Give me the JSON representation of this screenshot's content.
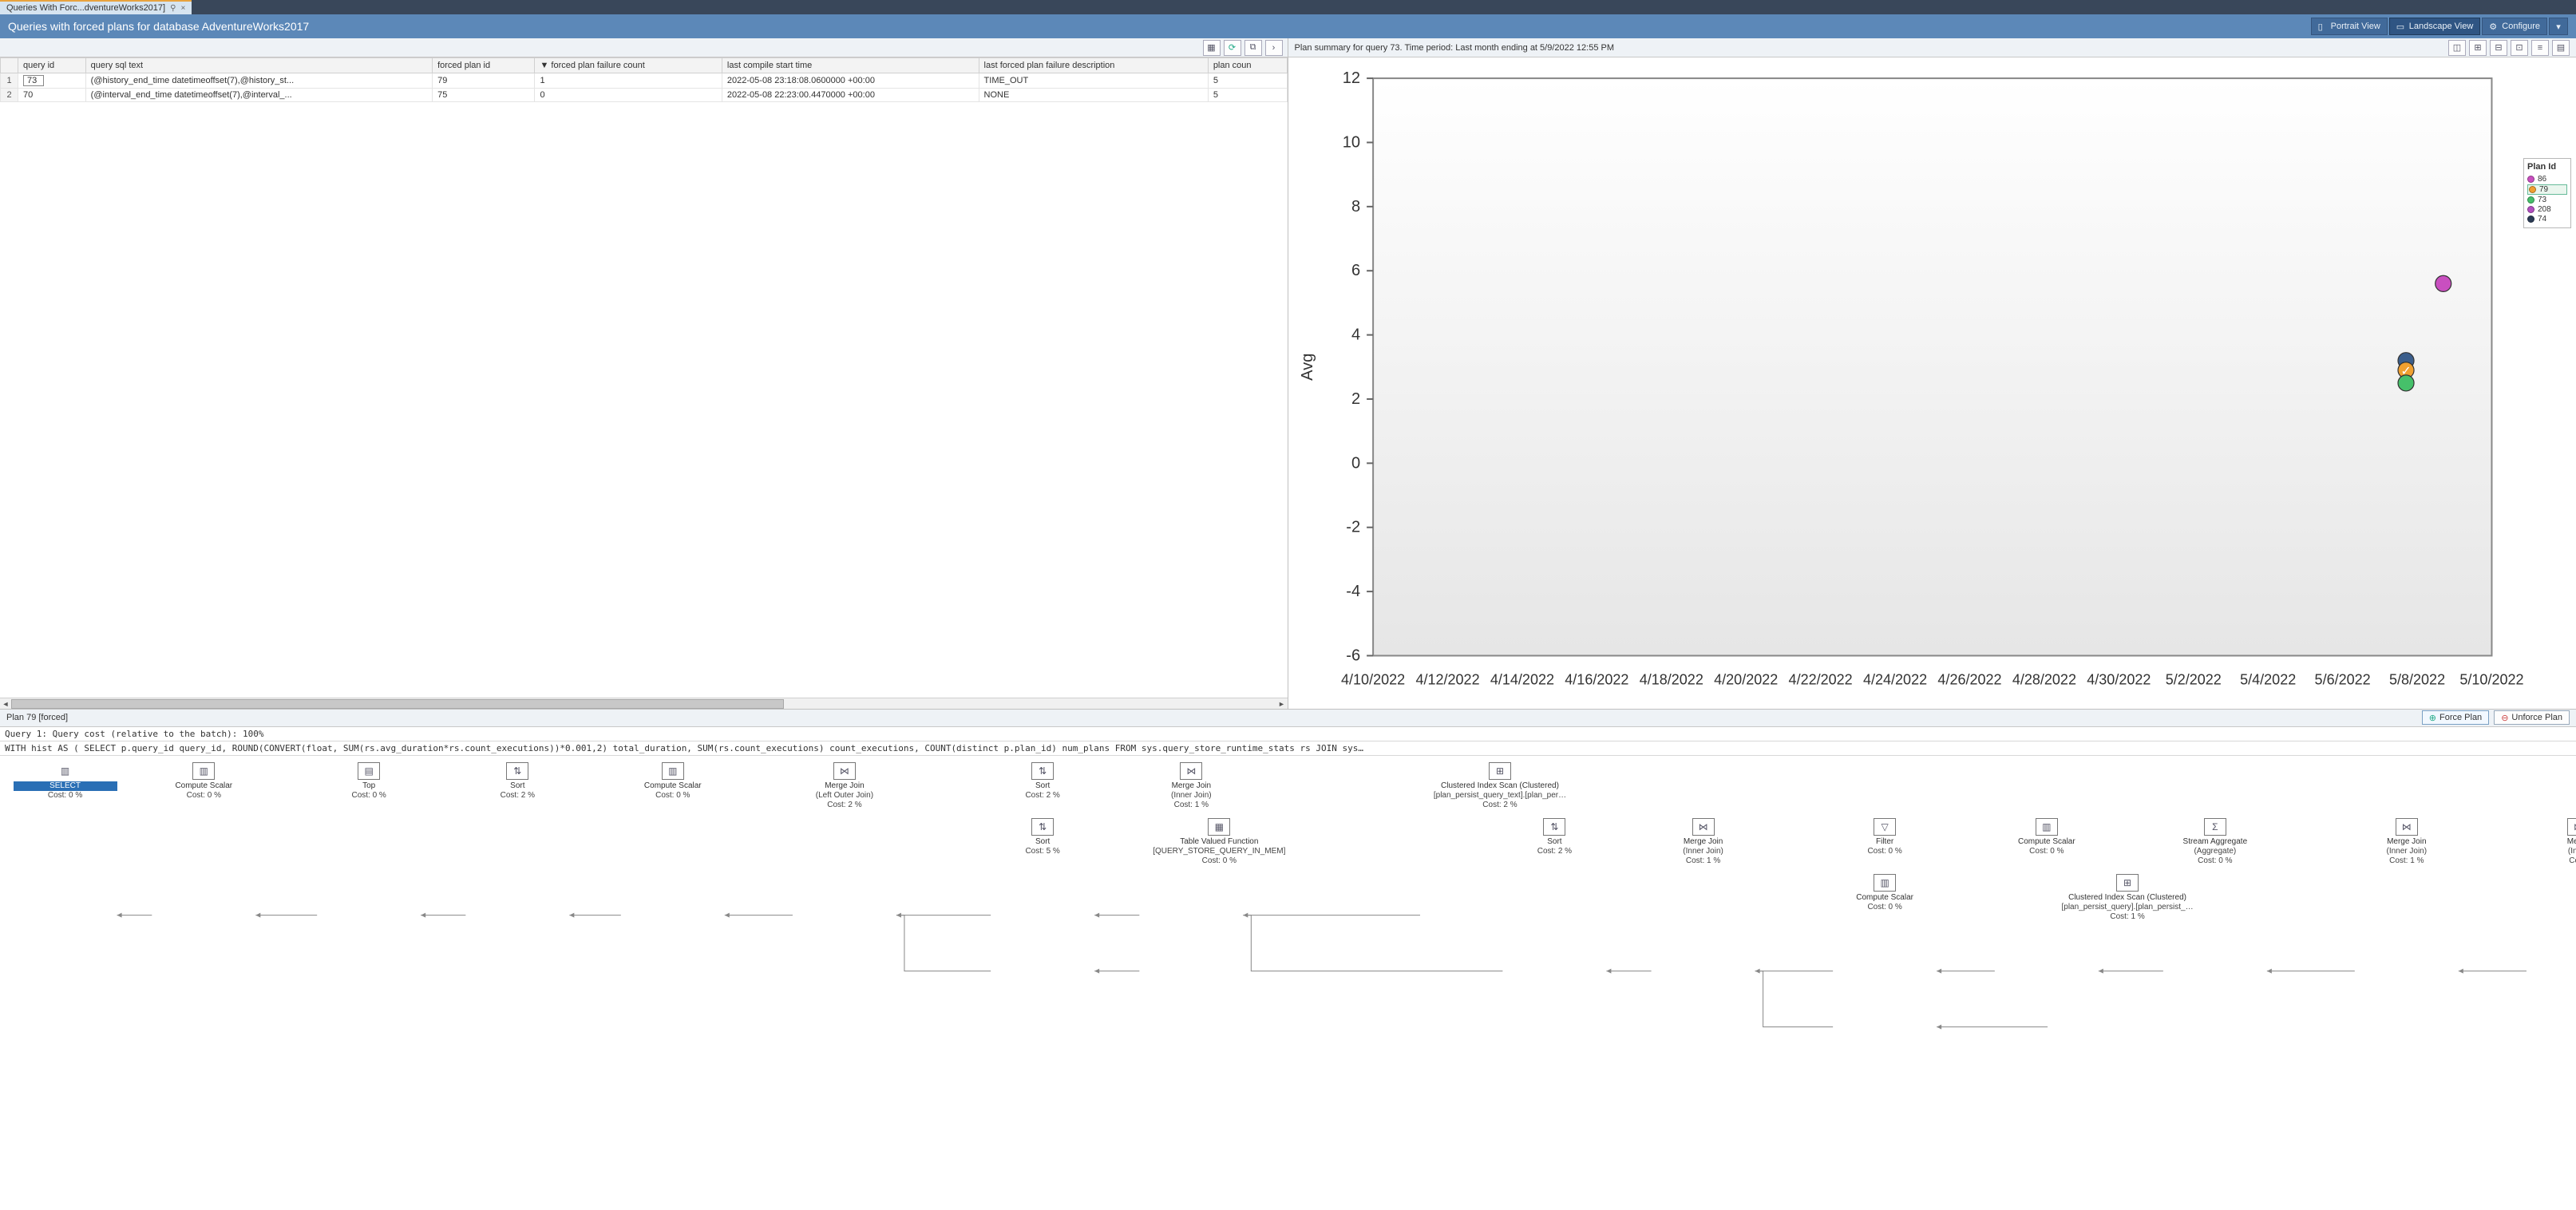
{
  "tab": {
    "title": "Queries With Forc...dventureWorks2017]",
    "pin": "⚲",
    "close": "×"
  },
  "title": "Queries with forced plans for database AdventureWorks2017",
  "headerButtons": {
    "portrait": "Portrait View",
    "landscape": "Landscape View",
    "configure": "Configure"
  },
  "grid": {
    "columns": [
      "",
      "query id",
      "query sql text",
      "forced plan id",
      "▼ forced plan failure count",
      "last compile start time",
      "last forced plan failure description",
      "plan coun"
    ],
    "rows": [
      {
        "n": "1",
        "query_id": "73",
        "sql": "(@history_end_time datetimeoffset(7),@history_st...",
        "plan_id": "79",
        "fail_cnt": "1",
        "compile": "2022-05-08 23:18:08.0600000 +00:00",
        "fail_desc": "TIME_OUT",
        "plan_cnt": "5"
      },
      {
        "n": "2",
        "query_id": "70",
        "sql": "(@interval_end_time datetimeoffset(7),@interval_...",
        "plan_id": "75",
        "fail_cnt": "0",
        "compile": "2022-05-08 22:23:00.4470000 +00:00",
        "fail_desc": "NONE",
        "plan_cnt": "5"
      }
    ]
  },
  "chart": {
    "title": "Plan summary for query 73. Time period: Last month ending at 5/9/2022 12:55 PM",
    "ylabel": "Avg",
    "ylim": [
      -6,
      12
    ],
    "ytick_step": 2,
    "xticks": [
      "4/10/2022",
      "4/12/2022",
      "4/14/2022",
      "4/16/2022",
      "4/18/2022",
      "4/20/2022",
      "4/22/2022",
      "4/24/2022",
      "4/26/2022",
      "4/28/2022",
      "4/30/2022",
      "5/2/2022",
      "5/4/2022",
      "5/6/2022",
      "5/8/2022",
      "5/10/2022"
    ],
    "background_top": "#ffffff",
    "background_bot": "#e6e6e6",
    "plot_border": "#888888",
    "points": [
      {
        "x": 14.35,
        "y": 5.6,
        "color": "#c94fc0"
      },
      {
        "x": 13.85,
        "y": 3.2,
        "color": "#3b5e8c"
      },
      {
        "x": 13.85,
        "y": 2.9,
        "color": "#f0a030",
        "check": true
      },
      {
        "x": 13.85,
        "y": 2.5,
        "color": "#46c06a"
      }
    ],
    "legend": {
      "title": "Plan Id",
      "items": [
        {
          "label": "86",
          "color": "#c94fc0"
        },
        {
          "label": "79",
          "color": "#f0a030",
          "selected": true
        },
        {
          "label": "73",
          "color": "#46c06a"
        },
        {
          "label": "208",
          "color": "#b24fc0"
        },
        {
          "label": "74",
          "color": "#2b3b55"
        }
      ]
    }
  },
  "planHeader": {
    "title": "Plan 79 [forced]",
    "force": "Force Plan",
    "unforce": "Unforce Plan"
  },
  "planText1": "Query 1: Query cost (relative to the batch): 100%",
  "planText2": "WITH hist AS ( SELECT p.query_id query_id, ROUND(CONVERT(float, SUM(rs.avg_duration*rs.count_executions))*0.001,2) total_duration, SUM(rs.count_executions) count_executions, COUNT(distinct p.plan_id) num_plans FROM sys.query_store_runtime_stats rs JOIN sys…",
  "ops": {
    "r1": [
      {
        "t1": "SELECT",
        "t2": "Cost: 0 %",
        "sel": true,
        "g": "▥"
      },
      {
        "t1": "Compute Scalar",
        "t2": "Cost: 0 %",
        "g": "▥"
      },
      {
        "t1": "Top",
        "t2": "Cost: 0 %",
        "g": "▤"
      },
      {
        "t1": "Sort",
        "t2": "Cost: 2 %",
        "g": "⇅"
      },
      {
        "t1": "Compute Scalar",
        "t2": "Cost: 0 %",
        "g": "▥"
      },
      {
        "t1": "Merge Join",
        "t1b": "(Left Outer Join)",
        "t2": "Cost: 2 %",
        "g": "⋈"
      },
      {
        "t1": "Sort",
        "t2": "Cost: 2 %",
        "g": "⇅"
      },
      {
        "t1": "Merge Join",
        "t1b": "(Inner Join)",
        "t2": "Cost: 1 %",
        "g": "⋈"
      },
      {
        "t1": "Clustered Index Scan (Clustered)",
        "t1b": "[plan_persist_query_text].[plan_per…",
        "t2": "Cost: 2 %",
        "g": "⊞",
        "wide": true
      }
    ],
    "r2": [
      {
        "t1": "Sort",
        "t2": "Cost: 5 %",
        "g": "⇅"
      },
      {
        "t1": "Table Valued Function",
        "t1b": "[QUERY_STORE_QUERY_IN_MEM]",
        "t2": "Cost: 0 %",
        "g": "▦",
        "wide": true
      },
      {
        "t1": "Sort",
        "t2": "Cost: 2 %",
        "g": "⇅"
      },
      {
        "t1": "Merge Join",
        "t1b": "(Inner Join)",
        "t2": "Cost: 1 %",
        "g": "⋈"
      },
      {
        "t1": "Filter",
        "t2": "Cost: 0 %",
        "g": "▽"
      },
      {
        "t1": "Compute Scalar",
        "t2": "Cost: 0 %",
        "g": "▥"
      },
      {
        "t1": "Stream Aggregate",
        "t1b": "(Aggregate)",
        "t2": "Cost: 0 %",
        "g": "Σ"
      },
      {
        "t1": "Merge Join",
        "t1b": "(Inner Join)",
        "t2": "Cost: 1 %",
        "g": "⋈"
      },
      {
        "t1": "Merge",
        "t1b": "(Inner",
        "t2": "Cost:",
        "g": "⋈"
      }
    ],
    "r3": [
      {
        "t1": "Compute Scalar",
        "t2": "Cost: 0 %",
        "g": "▥"
      },
      {
        "t1": "Clustered Index Scan (Clustered)",
        "t1b": "[plan_persist_query].[plan_persist_…",
        "t2": "Cost: 1 %",
        "g": "⊞",
        "wide": true
      }
    ]
  }
}
